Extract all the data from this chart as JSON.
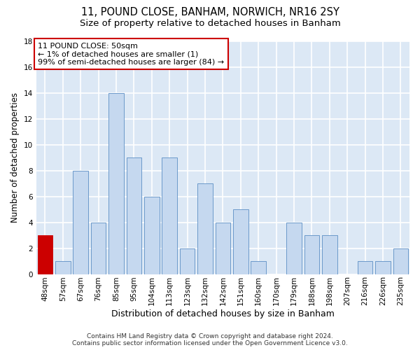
{
  "title": "11, POUND CLOSE, BANHAM, NORWICH, NR16 2SY",
  "subtitle": "Size of property relative to detached houses in Banham",
  "xlabel": "Distribution of detached houses by size in Banham",
  "ylabel": "Number of detached properties",
  "categories": [
    "48sqm",
    "57sqm",
    "67sqm",
    "76sqm",
    "85sqm",
    "95sqm",
    "104sqm",
    "113sqm",
    "123sqm",
    "132sqm",
    "142sqm",
    "151sqm",
    "160sqm",
    "170sqm",
    "179sqm",
    "188sqm",
    "198sqm",
    "207sqm",
    "216sqm",
    "226sqm",
    "235sqm"
  ],
  "values": [
    3,
    1,
    8,
    4,
    14,
    9,
    6,
    9,
    2,
    7,
    4,
    5,
    1,
    0,
    4,
    3,
    3,
    0,
    1,
    1,
    2
  ],
  "bar_color": "#c5d8ef",
  "bar_edge_color": "#5b8ec4",
  "highlight_bar_index": 0,
  "highlight_bar_color": "#cc0000",
  "highlight_bar_edge_color": "#cc0000",
  "annotation_text": "11 POUND CLOSE: 50sqm\n← 1% of detached houses are smaller (1)\n99% of semi-detached houses are larger (84) →",
  "annotation_box_facecolor": "#ffffff",
  "annotation_box_edgecolor": "#cc0000",
  "ylim": [
    0,
    18
  ],
  "yticks": [
    0,
    2,
    4,
    6,
    8,
    10,
    12,
    14,
    16,
    18
  ],
  "background_color": "#dce8f5",
  "grid_color": "#ffffff",
  "footer": "Contains HM Land Registry data © Crown copyright and database right 2024.\nContains public sector information licensed under the Open Government Licence v3.0.",
  "title_fontsize": 10.5,
  "subtitle_fontsize": 9.5,
  "xlabel_fontsize": 9,
  "ylabel_fontsize": 8.5,
  "tick_fontsize": 7.5,
  "annotation_fontsize": 8,
  "footer_fontsize": 6.5
}
